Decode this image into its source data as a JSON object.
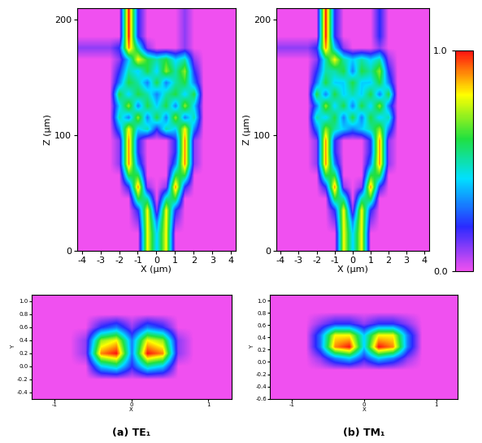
{
  "chart_data": [
    {
      "type": "heatmap",
      "xlabel": "X (μm)",
      "ylabel": "Z (μm)",
      "xlim": [
        -4.25,
        4.25
      ],
      "ylim": [
        0,
        210
      ],
      "xticks": [
        -4,
        -3,
        -2,
        -1,
        0,
        1,
        2,
        3,
        4
      ],
      "yticks": [
        0,
        100,
        200
      ],
      "cells": [
        [
          0,
          0,
          0,
          0,
          0,
          0,
          0,
          0.8,
          0.4,
          0.8,
          0,
          0,
          0,
          0,
          0,
          0,
          0
        ],
        [
          0,
          0,
          0,
          0,
          0,
          0,
          0,
          0.8,
          0.4,
          0.8,
          0,
          0,
          0,
          0,
          0,
          0,
          0
        ],
        [
          0,
          0,
          0,
          0,
          0,
          0,
          0.1,
          0.8,
          0.3,
          0.8,
          0.1,
          0,
          0,
          0,
          0,
          0,
          0
        ],
        [
          0,
          0,
          0,
          0,
          0,
          0,
          0.2,
          0.8,
          0.1,
          0.8,
          0.2,
          0,
          0,
          0,
          0,
          0,
          0
        ],
        [
          0,
          0,
          0,
          0,
          0,
          0,
          0.6,
          0.5,
          0,
          0.5,
          0.6,
          0,
          0,
          0,
          0,
          0,
          0
        ],
        [
          0,
          0,
          0,
          0,
          0,
          0.2,
          0.9,
          0.1,
          0,
          0.1,
          0.9,
          0.2,
          0,
          0,
          0,
          0,
          0
        ],
        [
          0,
          0,
          0,
          0,
          0,
          0.6,
          0.6,
          0,
          0,
          0,
          0.6,
          0.6,
          0,
          0,
          0,
          0,
          0
        ],
        [
          0,
          0,
          0,
          0,
          0.1,
          0.9,
          0.3,
          0,
          0,
          0,
          0.3,
          0.9,
          0.1,
          0,
          0,
          0,
          0
        ],
        [
          0,
          0,
          0,
          0,
          0.1,
          0.9,
          0.2,
          0,
          0,
          0,
          0.2,
          0.9,
          0.1,
          0,
          0,
          0,
          0
        ],
        [
          0,
          0,
          0,
          0,
          0.1,
          0.9,
          0.2,
          0,
          0,
          0,
          0.2,
          0.9,
          0.1,
          0,
          0,
          0,
          0
        ],
        [
          0,
          0,
          0,
          0,
          0.3,
          0.8,
          0.4,
          0.5,
          0.2,
          0.5,
          0.4,
          0.8,
          0.3,
          0,
          0,
          0,
          0
        ],
        [
          0,
          0,
          0,
          0,
          0.5,
          0.3,
          0.7,
          0.3,
          0.6,
          0.3,
          0.7,
          0.3,
          0.5,
          0,
          0,
          0,
          0
        ],
        [
          0,
          0,
          0,
          0,
          0.4,
          0.7,
          0.3,
          0.6,
          0.4,
          0.6,
          0.3,
          0.7,
          0.4,
          0,
          0,
          0,
          0
        ],
        [
          0,
          0,
          0,
          0,
          0.6,
          0.4,
          0.6,
          0.5,
          0.3,
          0.5,
          0.6,
          0.4,
          0.6,
          0,
          0,
          0,
          0
        ],
        [
          0,
          0,
          0,
          0,
          0.3,
          0.6,
          0.5,
          0.3,
          0.6,
          0.3,
          0.5,
          0.6,
          0.3,
          0,
          0,
          0,
          0
        ],
        [
          0,
          0,
          0,
          0,
          0.2,
          0.5,
          0.4,
          0.6,
          0.4,
          0.7,
          0.5,
          0.7,
          0.2,
          0,
          0,
          0,
          0
        ],
        [
          0,
          0,
          0,
          0,
          0.1,
          0.4,
          0.8,
          0.6,
          0.5,
          0.6,
          0.4,
          0.5,
          0.1,
          0,
          0,
          0,
          0
        ],
        [
          0.1,
          0.1,
          0.1,
          0.1,
          0.2,
          0.9,
          0.5,
          0.1,
          0,
          0,
          0,
          0.1,
          0,
          0,
          0,
          0,
          0
        ],
        [
          0,
          0,
          0,
          0,
          0,
          1.0,
          0.2,
          0,
          0,
          0,
          0,
          0.1,
          0,
          0,
          0,
          0,
          0
        ],
        [
          0,
          0,
          0,
          0,
          0,
          1.0,
          0.2,
          0,
          0,
          0,
          0,
          0.1,
          0,
          0,
          0,
          0,
          0
        ],
        [
          0,
          0,
          0,
          0,
          0,
          1.0,
          0.2,
          0,
          0,
          0,
          0,
          0.1,
          0,
          0,
          0,
          0,
          0
        ]
      ]
    },
    {
      "type": "heatmap",
      "xlabel": "X (μm)",
      "ylabel": "Z (μm)",
      "xlim": [
        -4.25,
        4.25
      ],
      "ylim": [
        0,
        210
      ],
      "xticks": [
        -4,
        -3,
        -2,
        -1,
        0,
        1,
        2,
        3,
        4
      ],
      "yticks": [
        0,
        100,
        200
      ],
      "color_range": [
        0.0,
        1.0
      ],
      "color_ticks": [
        {
          "value": 0.0,
          "label": "0.0"
        },
        {
          "value": 1.0,
          "label": "1.0"
        }
      ],
      "cells": [
        [
          0,
          0,
          0,
          0,
          0,
          0,
          0,
          0.8,
          0.4,
          0.8,
          0,
          0,
          0,
          0,
          0,
          0,
          0
        ],
        [
          0,
          0,
          0,
          0,
          0,
          0,
          0,
          0.8,
          0.4,
          0.8,
          0,
          0,
          0,
          0,
          0,
          0,
          0
        ],
        [
          0,
          0,
          0,
          0,
          0,
          0,
          0.1,
          0.8,
          0.3,
          0.8,
          0.1,
          0,
          0,
          0,
          0,
          0,
          0
        ],
        [
          0,
          0,
          0,
          0,
          0,
          0,
          0.2,
          0.8,
          0.1,
          0.8,
          0.2,
          0,
          0,
          0,
          0,
          0,
          0
        ],
        [
          0,
          0,
          0,
          0,
          0,
          0,
          0.6,
          0.5,
          0,
          0.5,
          0.6,
          0,
          0,
          0,
          0,
          0,
          0
        ],
        [
          0,
          0,
          0,
          0,
          0,
          0.2,
          0.9,
          0.1,
          0,
          0.1,
          0.9,
          0.2,
          0,
          0,
          0,
          0,
          0
        ],
        [
          0,
          0,
          0,
          0,
          0,
          0.6,
          0.6,
          0,
          0,
          0,
          0.6,
          0.6,
          0,
          0,
          0,
          0,
          0
        ],
        [
          0,
          0,
          0,
          0,
          0.1,
          0.9,
          0.3,
          0,
          0,
          0,
          0.3,
          0.9,
          0.1,
          0,
          0,
          0,
          0
        ],
        [
          0,
          0,
          0,
          0,
          0.1,
          0.9,
          0.2,
          0,
          0,
          0,
          0.2,
          0.9,
          0.1,
          0,
          0,
          0,
          0
        ],
        [
          0,
          0,
          0,
          0,
          0.1,
          0.9,
          0.2,
          0,
          0,
          0,
          0.2,
          0.9,
          0.1,
          0,
          0,
          0,
          0
        ],
        [
          0,
          0,
          0,
          0,
          0.3,
          0.7,
          0.5,
          0.4,
          0.3,
          0.4,
          0.5,
          0.7,
          0.3,
          0,
          0,
          0,
          0
        ],
        [
          0,
          0,
          0,
          0,
          0.5,
          0.4,
          0.6,
          0.3,
          0.6,
          0.3,
          0.6,
          0.4,
          0.5,
          0,
          0,
          0,
          0
        ],
        [
          0,
          0,
          0,
          0,
          0.3,
          0.7,
          0.4,
          0.6,
          0.3,
          0.6,
          0.4,
          0.7,
          0.3,
          0,
          0,
          0,
          0
        ],
        [
          0,
          0,
          0,
          0,
          0.6,
          0.3,
          0.6,
          0.4,
          0.5,
          0.4,
          0.6,
          0.3,
          0.6,
          0,
          0,
          0,
          0
        ],
        [
          0,
          0,
          0,
          0,
          0.3,
          0.6,
          0.4,
          0.4,
          0.6,
          0.4,
          0.4,
          0.6,
          0.3,
          0,
          0,
          0,
          0
        ],
        [
          0,
          0,
          0,
          0,
          0.2,
          0.5,
          0.5,
          0.6,
          0.3,
          0.6,
          0.5,
          0.7,
          0.2,
          0,
          0,
          0,
          0
        ],
        [
          0,
          0,
          0,
          0,
          0.1,
          0.5,
          0.8,
          0.5,
          0.4,
          0.5,
          0.4,
          0.5,
          0.1,
          0,
          0,
          0,
          0
        ],
        [
          0.1,
          0.1,
          0.1,
          0.1,
          0.2,
          0.9,
          0.4,
          0.1,
          0,
          0,
          0,
          0.1,
          0,
          0,
          0,
          0,
          0
        ],
        [
          0,
          0,
          0,
          0,
          0,
          1.0,
          0.2,
          0,
          0,
          0,
          0,
          0.2,
          0,
          0,
          0,
          0,
          0
        ],
        [
          0,
          0,
          0,
          0,
          0,
          1.0,
          0.2,
          0,
          0,
          0,
          0,
          0.2,
          0,
          0,
          0,
          0,
          0
        ],
        [
          0,
          0,
          0,
          0,
          0,
          1.0,
          0.2,
          0,
          0,
          0,
          0,
          0.2,
          0,
          0,
          0,
          0,
          0
        ]
      ]
    },
    {
      "type": "heatmap",
      "title": "(a) TE₁",
      "xlabel": "X",
      "ylabel": "Y",
      "xlim": [
        -1.3,
        1.3
      ],
      "ylim": [
        -0.5,
        1.1
      ],
      "xticks": [
        -1,
        0,
        1
      ],
      "yticks": [
        -0.4,
        -0.2,
        0.0,
        0.2,
        0.4,
        0.6,
        0.8,
        1.0
      ],
      "cells": [
        [
          0,
          0,
          0,
          0,
          0,
          0,
          0,
          0,
          0,
          0,
          0,
          0,
          0
        ],
        [
          0,
          0,
          0,
          0,
          0,
          0,
          0,
          0,
          0,
          0,
          0,
          0,
          0
        ],
        [
          0,
          0,
          0,
          0,
          0.4,
          0.5,
          0.2,
          0.5,
          0.4,
          0,
          0,
          0,
          0
        ],
        [
          0,
          0,
          0,
          0.1,
          0.9,
          1.0,
          0.3,
          1.0,
          0.9,
          0.1,
          0,
          0,
          0
        ],
        [
          0,
          0,
          0,
          0.1,
          0.7,
          0.8,
          0.3,
          0.8,
          0.7,
          0.1,
          0,
          0,
          0
        ],
        [
          0,
          0,
          0,
          0,
          0.2,
          0.3,
          0.1,
          0.3,
          0.2,
          0,
          0,
          0,
          0
        ],
        [
          0,
          0,
          0,
          0,
          0,
          0,
          0,
          0,
          0,
          0,
          0,
          0,
          0
        ],
        [
          0,
          0,
          0,
          0,
          0,
          0,
          0,
          0,
          0,
          0,
          0,
          0,
          0
        ]
      ]
    },
    {
      "type": "heatmap",
      "title": "(b) TM₁",
      "xlabel": "X",
      "ylabel": "Y",
      "xlim": [
        -1.3,
        1.3
      ],
      "ylim": [
        -0.6,
        1.1
      ],
      "xticks": [
        -1,
        0,
        1
      ],
      "yticks": [
        -0.6,
        -0.4,
        -0.2,
        0.0,
        0.2,
        0.4,
        0.6,
        0.8,
        1.0
      ],
      "cells": [
        [
          0,
          0,
          0,
          0,
          0,
          0,
          0,
          0,
          0,
          0,
          0,
          0,
          0
        ],
        [
          0,
          0,
          0,
          0,
          0,
          0,
          0,
          0,
          0,
          0,
          0,
          0,
          0
        ],
        [
          0,
          0,
          0,
          0,
          0,
          0,
          0,
          0,
          0,
          0,
          0,
          0,
          0
        ],
        [
          0,
          0,
          0,
          0.1,
          0.3,
          0.4,
          0.2,
          0.4,
          0.3,
          0.1,
          0,
          0,
          0
        ],
        [
          0,
          0,
          0,
          0.3,
          0.9,
          1.0,
          0.4,
          1.0,
          0.9,
          0.3,
          0,
          0,
          0
        ],
        [
          0,
          0,
          0,
          0.3,
          0.8,
          0.8,
          0.4,
          0.8,
          0.8,
          0.3,
          0,
          0,
          0
        ],
        [
          0,
          0,
          0,
          0.1,
          0.2,
          0.2,
          0.1,
          0.2,
          0.2,
          0.1,
          0,
          0,
          0
        ],
        [
          0,
          0,
          0,
          0,
          0,
          0,
          0,
          0,
          0,
          0,
          0,
          0,
          0
        ],
        [
          0,
          0,
          0,
          0,
          0,
          0,
          0,
          0,
          0,
          0,
          0,
          0,
          0
        ]
      ]
    }
  ]
}
